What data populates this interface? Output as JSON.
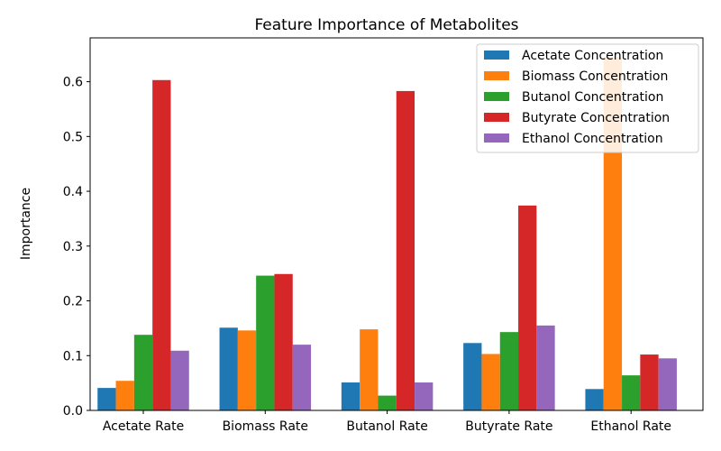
{
  "chart_data": {
    "type": "bar",
    "title": "Feature Importance of Metabolites",
    "xlabel": "",
    "ylabel": "Importance",
    "ylim": [
      0,
      0.68
    ],
    "yticks": [
      "0.0",
      "0.1",
      "0.2",
      "0.3",
      "0.4",
      "0.5",
      "0.6"
    ],
    "categories": [
      "Acetate Rate",
      "Biomass Rate",
      "Butanol Rate",
      "Butyrate Rate",
      "Ethanol Rate"
    ],
    "series": [
      {
        "name": "Acetate Concentration",
        "color": "#1f77b4",
        "values": [
          0.041,
          0.151,
          0.051,
          0.123,
          0.039
        ]
      },
      {
        "name": "Biomass Concentration",
        "color": "#ff7f0e",
        "values": [
          0.054,
          0.146,
          0.148,
          0.103,
          0.645
        ]
      },
      {
        "name": "Butanol Concentration",
        "color": "#2ca02c",
        "values": [
          0.138,
          0.246,
          0.027,
          0.143,
          0.064
        ]
      },
      {
        "name": "Butyrate Concentration",
        "color": "#d62728",
        "values": [
          0.603,
          0.249,
          0.583,
          0.374,
          0.102
        ]
      },
      {
        "name": "Ethanol Concentration",
        "color": "#9467bd",
        "values": [
          0.109,
          0.12,
          0.051,
          0.155,
          0.095
        ]
      }
    ],
    "legend_position": "top-right",
    "grid": false
  }
}
